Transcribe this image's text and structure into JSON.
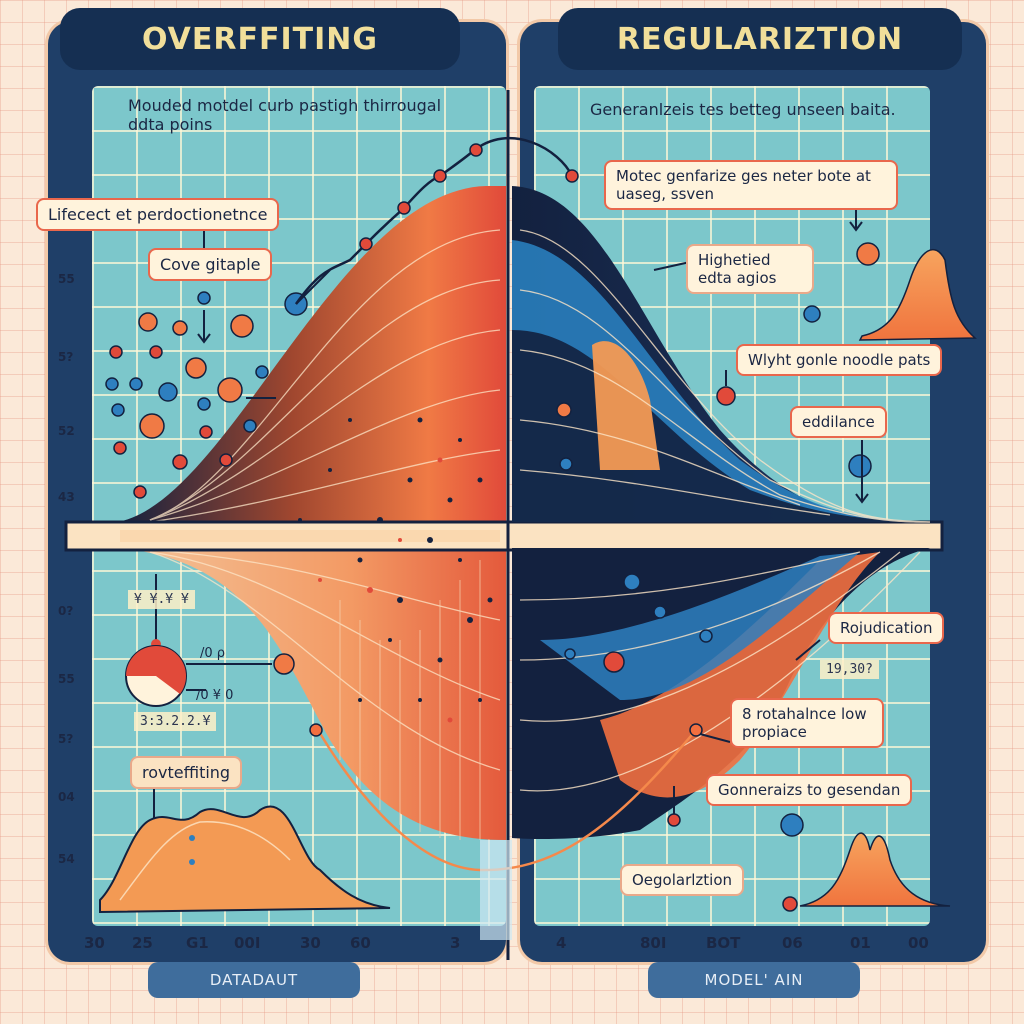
{
  "left_panel": {
    "title": "OVERFFITING",
    "note": "Mouded motdel curb pastigh thirrougal ddta poins",
    "labels": {
      "prediction": "Lifecect et perdoctionetnce",
      "gitaple": "Cove gitaple",
      "overfitting": "rovteffiting"
    },
    "readouts": [
      "¥ ¥.¥ ¥",
      "3:3.2.2.¥",
      "/0 ρ",
      "/0 ¥ 0"
    ],
    "y_ticks": [
      "55",
      "5?",
      "52",
      "43",
      "0?",
      "55",
      "5?",
      "04",
      "54"
    ],
    "x_ticks": [
      "30",
      "25",
      "G1",
      "00I",
      "30",
      "60",
      "3"
    ],
    "footer": "DATADAUT"
  },
  "right_panel": {
    "title": "REGULARIZTION",
    "note": "Generanlzeis tes betteg unseen baita.",
    "labels": {
      "motec": "Motec genfarize ges neter bote at uaseg, ssven",
      "highlighted": "Highetied edta agios",
      "noodle": "Wlyht gonle noodle pats",
      "edilance": "eddilance",
      "rojudication": "Rojudication",
      "rotahalnce": "8 rotahalnce low propiace",
      "generalizes": "Gonneraizs to gesendan",
      "regularization": "Oegolarlztion"
    },
    "readout": "19,30?",
    "x_ticks": [
      "4",
      "80I",
      "BOT",
      "06",
      "01",
      "00"
    ],
    "footer": "MODEL' AIN"
  },
  "colors": {
    "panel": "#1f3f68",
    "plot_bg": "#7cc7cb",
    "accent_orange": "#f07a45",
    "accent_red": "#e14a3a",
    "navy": "#13213f",
    "blue": "#2e7fbf",
    "title_text": "#f1df9a"
  },
  "icons": [
    "data-point-dot-icon",
    "pie-gauge-icon",
    "arrow-connector-icon"
  ]
}
